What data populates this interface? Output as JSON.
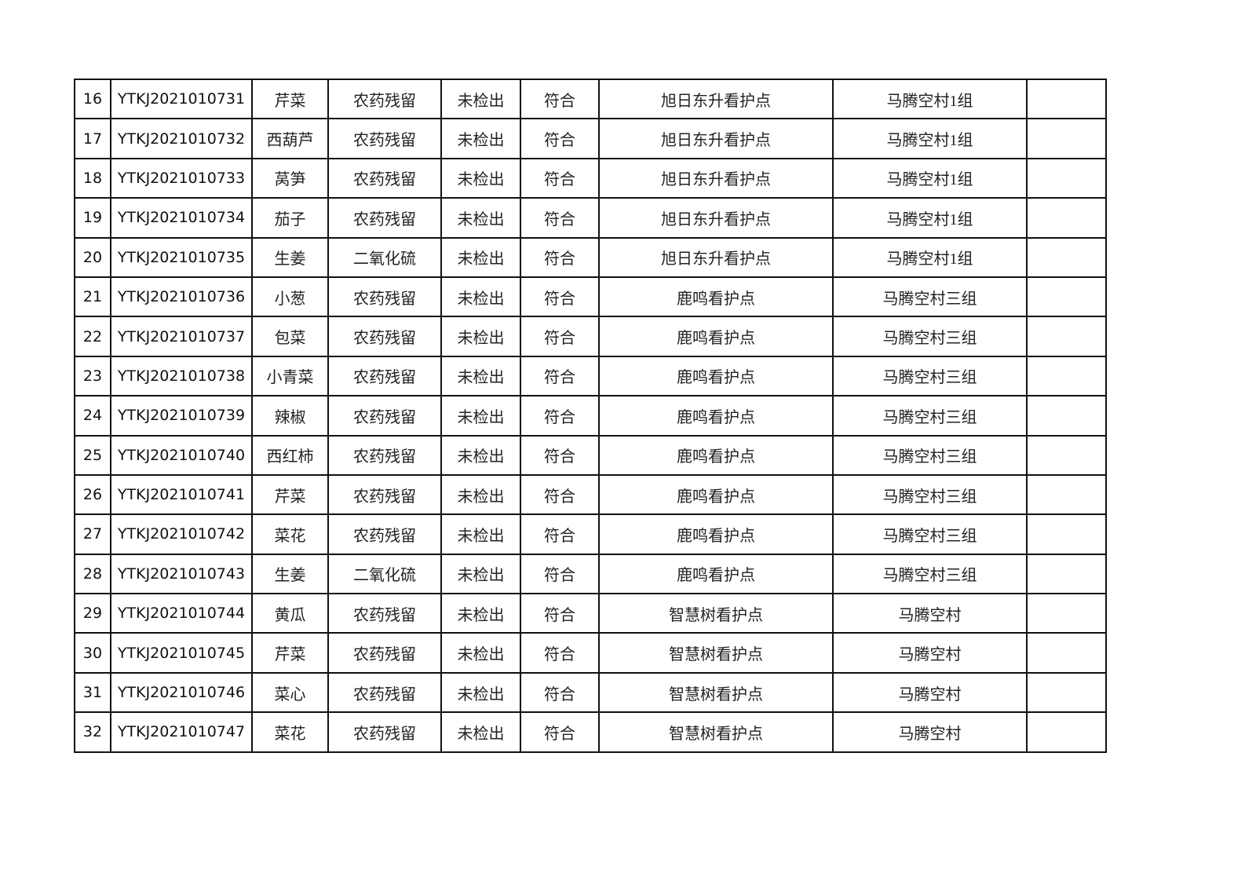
{
  "table": {
    "rows": [
      [
        "16",
        "YTKJ2021010731",
        "芹菜",
        "农药残留",
        "未检出",
        "符合",
        "旭日东升看护点",
        "马腾空村1组",
        ""
      ],
      [
        "17",
        "YTKJ2021010732",
        "西葫芦",
        "农药残留",
        "未检出",
        "符合",
        "旭日东升看护点",
        "马腾空村1组",
        ""
      ],
      [
        "18",
        "YTKJ2021010733",
        "莴笋",
        "农药残留",
        "未检出",
        "符合",
        "旭日东升看护点",
        "马腾空村1组",
        ""
      ],
      [
        "19",
        "YTKJ2021010734",
        "茄子",
        "农药残留",
        "未检出",
        "符合",
        "旭日东升看护点",
        "马腾空村1组",
        ""
      ],
      [
        "20",
        "YTKJ2021010735",
        "生姜",
        "二氧化硫",
        "未检出",
        "符合",
        "旭日东升看护点",
        "马腾空村1组",
        ""
      ],
      [
        "21",
        "YTKJ2021010736",
        "小葱",
        "农药残留",
        "未检出",
        "符合",
        "鹿鸣看护点",
        "马腾空村三组",
        ""
      ],
      [
        "22",
        "YTKJ2021010737",
        "包菜",
        "农药残留",
        "未检出",
        "符合",
        "鹿鸣看护点",
        "马腾空村三组",
        ""
      ],
      [
        "23",
        "YTKJ2021010738",
        "小青菜",
        "农药残留",
        "未检出",
        "符合",
        "鹿鸣看护点",
        "马腾空村三组",
        ""
      ],
      [
        "24",
        "YTKJ2021010739",
        "辣椒",
        "农药残留",
        "未检出",
        "符合",
        "鹿鸣看护点",
        "马腾空村三组",
        ""
      ],
      [
        "25",
        "YTKJ2021010740",
        "西红柿",
        "农药残留",
        "未检出",
        "符合",
        "鹿鸣看护点",
        "马腾空村三组",
        ""
      ],
      [
        "26",
        "YTKJ2021010741",
        "芹菜",
        "农药残留",
        "未检出",
        "符合",
        "鹿鸣看护点",
        "马腾空村三组",
        ""
      ],
      [
        "27",
        "YTKJ2021010742",
        "菜花",
        "农药残留",
        "未检出",
        "符合",
        "鹿鸣看护点",
        "马腾空村三组",
        ""
      ],
      [
        "28",
        "YTKJ2021010743",
        "生姜",
        "二氧化硫",
        "未检出",
        "符合",
        "鹿鸣看护点",
        "马腾空村三组",
        ""
      ],
      [
        "29",
        "YTKJ2021010744",
        "黄瓜",
        "农药残留",
        "未检出",
        "符合",
        "智慧树看护点",
        "马腾空村",
        ""
      ],
      [
        "30",
        "YTKJ2021010745",
        "芹菜",
        "农药残留",
        "未检出",
        "符合",
        "智慧树看护点",
        "马腾空村",
        ""
      ],
      [
        "31",
        "YTKJ2021010746",
        "菜心",
        "农药残留",
        "未检出",
        "符合",
        "智慧树看护点",
        "马腾空村",
        ""
      ],
      [
        "32",
        "YTKJ2021010747",
        "菜花",
        "农药残留",
        "未检出",
        "符合",
        "智慧树看护点",
        "马腾空村",
        ""
      ]
    ]
  }
}
